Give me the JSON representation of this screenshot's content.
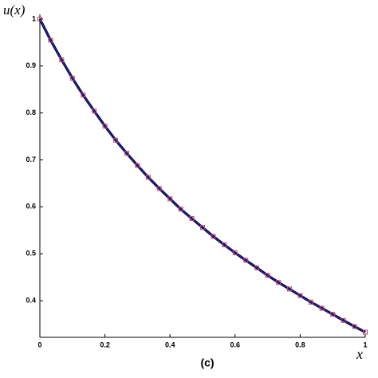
{
  "chart_data": {
    "type": "line",
    "ylabel": "u(x)",
    "xlabel": "x",
    "caption": "(c)",
    "x": [
      0,
      0.033,
      0.067,
      0.1,
      0.133,
      0.167,
      0.2,
      0.233,
      0.267,
      0.3,
      0.333,
      0.367,
      0.4,
      0.433,
      0.467,
      0.5,
      0.533,
      0.567,
      0.6,
      0.633,
      0.667,
      0.7,
      0.733,
      0.767,
      0.8,
      0.833,
      0.867,
      0.9,
      0.933,
      0.967,
      1
    ],
    "series": [
      {
        "color": "#1f1fbf",
        "style": "line",
        "values": [
          1,
          0.955,
          0.913,
          0.874,
          0.838,
          0.804,
          0.772,
          0.742,
          0.714,
          0.688,
          0.663,
          0.639,
          0.617,
          0.595,
          0.575,
          0.556,
          0.537,
          0.519,
          0.502,
          0.486,
          0.47,
          0.454,
          0.439,
          0.425,
          0.411,
          0.397,
          0.384,
          0.371,
          0.358,
          0.345,
          0.333
        ]
      },
      {
        "color": "#c0406a",
        "style": "marker",
        "values": [
          1,
          0.955,
          0.913,
          0.874,
          0.838,
          0.804,
          0.772,
          0.742,
          0.714,
          0.688,
          0.663,
          0.639,
          0.617,
          0.595,
          0.575,
          0.556,
          0.537,
          0.519,
          0.502,
          0.486,
          0.47,
          0.454,
          0.439,
          0.425,
          0.411,
          0.397,
          0.384,
          0.371,
          0.358,
          0.345,
          0.333
        ]
      }
    ],
    "xlim": [
      0,
      1
    ],
    "xticks": [
      0,
      0.2,
      0.4,
      0.6,
      0.8,
      1
    ],
    "ylim": [
      0.322,
      1.01
    ],
    "yticks": [
      0.4,
      0.5,
      0.6,
      0.7,
      0.8,
      0.9,
      1
    ]
  }
}
